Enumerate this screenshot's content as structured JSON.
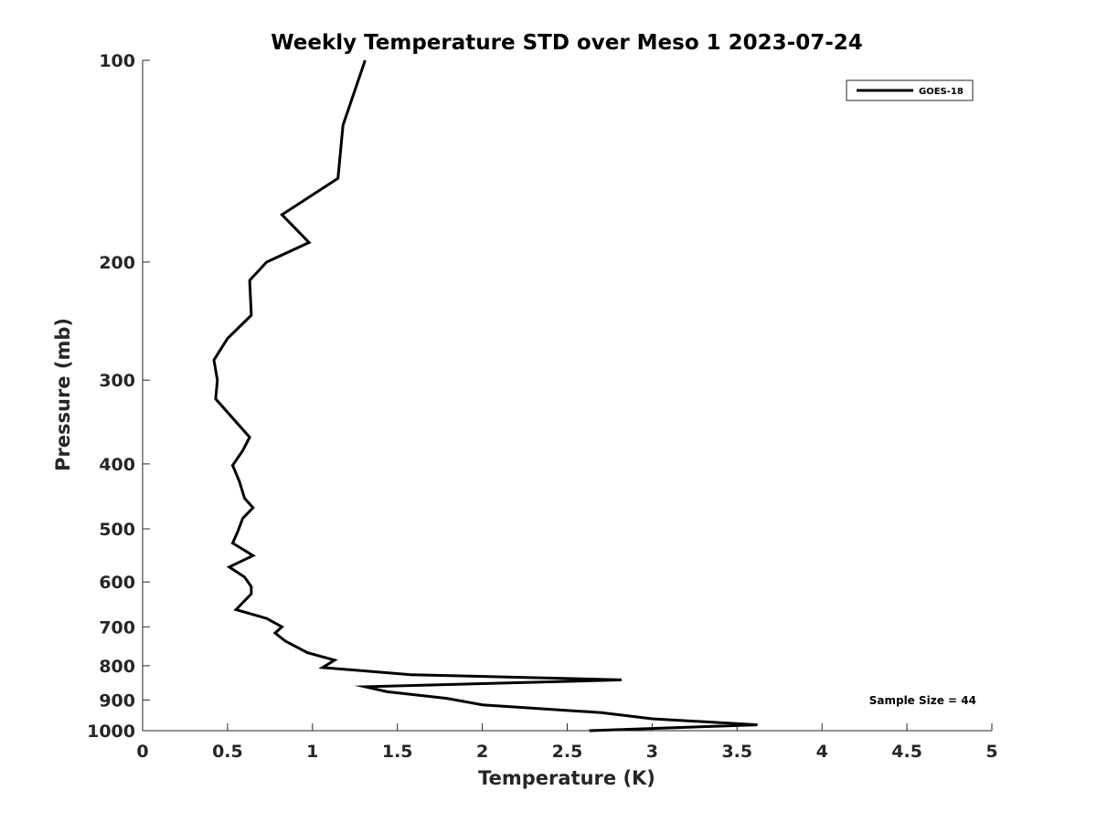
{
  "chart_data": {
    "type": "line",
    "title": "Weekly Temperature STD over Meso 1 2023-07-24",
    "xlabel": "Temperature (K)",
    "ylabel": "Pressure (mb)",
    "xlim": [
      0,
      5
    ],
    "ylim": [
      1000,
      100
    ],
    "y_scale": "log",
    "y_reversed": true,
    "grid": false,
    "legend_position": "top-right",
    "x_ticks": [
      "0",
      "0.5",
      "1",
      "1.5",
      "2",
      "2.5",
      "3",
      "3.5",
      "4",
      "4.5",
      "5"
    ],
    "y_ticks": [
      "100",
      "200",
      "300",
      "400",
      "500",
      "600",
      "700",
      "800",
      "900",
      "1000"
    ],
    "annotation": "Sample Size = 44",
    "series": [
      {
        "name": "GOES-18",
        "color": "#000000",
        "points": [
          [
            1.31,
            100
          ],
          [
            1.18,
            125
          ],
          [
            1.15,
            150
          ],
          [
            0.82,
            170
          ],
          [
            0.98,
            187
          ],
          [
            0.73,
            200
          ],
          [
            0.63,
            213
          ],
          [
            0.64,
            240
          ],
          [
            0.5,
            260
          ],
          [
            0.42,
            280
          ],
          [
            0.44,
            300
          ],
          [
            0.43,
            320
          ],
          [
            0.63,
            365
          ],
          [
            0.59,
            382
          ],
          [
            0.53,
            402
          ],
          [
            0.57,
            425
          ],
          [
            0.6,
            450
          ],
          [
            0.65,
            465
          ],
          [
            0.59,
            482
          ],
          [
            0.56,
            505
          ],
          [
            0.53,
            525
          ],
          [
            0.65,
            548
          ],
          [
            0.51,
            570
          ],
          [
            0.6,
            590
          ],
          [
            0.64,
            610
          ],
          [
            0.64,
            625
          ],
          [
            0.55,
            660
          ],
          [
            0.73,
            680
          ],
          [
            0.82,
            700
          ],
          [
            0.78,
            715
          ],
          [
            0.84,
            735
          ],
          [
            0.97,
            765
          ],
          [
            1.13,
            785
          ],
          [
            1.06,
            805
          ],
          [
            1.58,
            825
          ],
          [
            2.82,
            840
          ],
          [
            1.31,
            860
          ],
          [
            1.44,
            875
          ],
          [
            1.79,
            895
          ],
          [
            2.0,
            915
          ],
          [
            2.7,
            940
          ],
          [
            3.0,
            960
          ],
          [
            3.62,
            980
          ],
          [
            2.63,
            1000
          ]
        ]
      }
    ]
  }
}
